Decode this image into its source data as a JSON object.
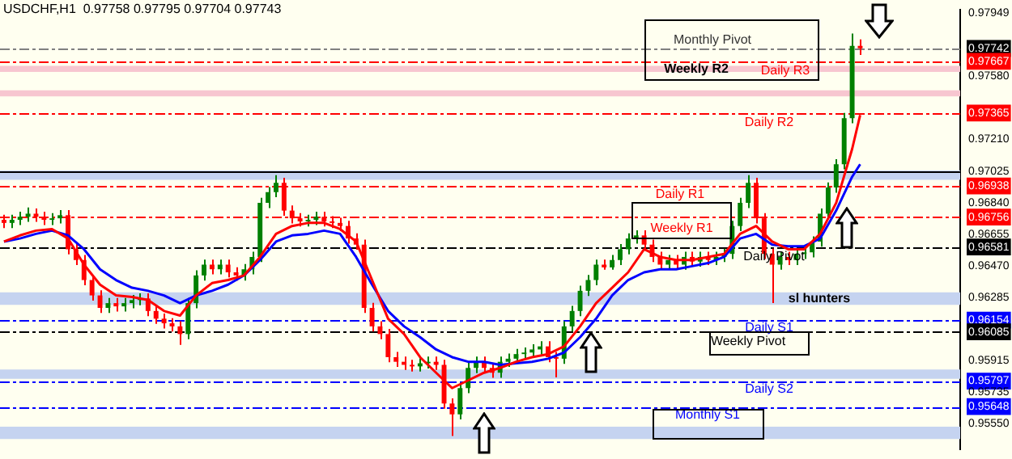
{
  "chart_data": {
    "type": "candlestick",
    "title": "USDCHF,H1  0.97758 0.97795 0.97704 0.97743",
    "categories": [
      null,
      null,
      null,
      null,
      null,
      null,
      null,
      null,
      null,
      null,
      null,
      null,
      null,
      null,
      null,
      null,
      null,
      null,
      null,
      null,
      null,
      null,
      null,
      null,
      null,
      null,
      null,
      null,
      null,
      null,
      null,
      null,
      null,
      null,
      null,
      null,
      null,
      null,
      null,
      null,
      null,
      null,
      null,
      null,
      null,
      null,
      null,
      null,
      null,
      null,
      null,
      null,
      null,
      null,
      null,
      null,
      null,
      null,
      null,
      null,
      null,
      null,
      null,
      null,
      null,
      null,
      null,
      null,
      null,
      null,
      null,
      null,
      null,
      null,
      null,
      null,
      null,
      null,
      null,
      null,
      null,
      null,
      null,
      null,
      null,
      null,
      null,
      null,
      null,
      null,
      null,
      null,
      null,
      null,
      null,
      null,
      null,
      null,
      null,
      null,
      null,
      null,
      null,
      null,
      null,
      null,
      null,
      null,
      null,
      null,
      null,
      null,
      null,
      null,
      null,
      null,
      null,
      null,
      null,
      null
    ],
    "ohlc": [
      [
        0.9674,
        0.9677,
        0.96692,
        0.96722
      ],
      [
        0.96722,
        0.9677,
        0.96692,
        0.9674
      ],
      [
        0.9674,
        0.96788,
        0.9671,
        0.96758
      ],
      [
        0.96758,
        0.96812,
        0.96728,
        0.96776
      ],
      [
        0.96776,
        0.96806,
        0.96728,
        0.96758
      ],
      [
        0.96758,
        0.96788,
        0.9671,
        0.9674
      ],
      [
        0.9674,
        0.96779,
        0.9671,
        0.96749
      ],
      [
        0.96749,
        0.96797,
        0.96719,
        0.96767
      ],
      [
        0.96767,
        0.96797,
        0.96538,
        0.96568
      ],
      [
        0.96568,
        0.96598,
        0.96475,
        0.96505
      ],
      [
        0.96505,
        0.96535,
        0.96358,
        0.96388
      ],
      [
        0.96388,
        0.96418,
        0.96268,
        0.96298
      ],
      [
        0.96298,
        0.96328,
        0.96195,
        0.96225
      ],
      [
        0.96225,
        0.96283,
        0.96195,
        0.96253
      ],
      [
        0.96253,
        0.96283,
        0.96204,
        0.96234
      ],
      [
        0.96234,
        0.96283,
        0.96204,
        0.96253
      ],
      [
        0.96253,
        0.96301,
        0.96223,
        0.96271
      ],
      [
        0.96271,
        0.9631,
        0.96241,
        0.9628
      ],
      [
        0.9628,
        0.9631,
        0.96177,
        0.96207
      ],
      [
        0.96207,
        0.96237,
        0.96132,
        0.96162
      ],
      [
        0.96162,
        0.96192,
        0.96105,
        0.96135
      ],
      [
        0.96135,
        0.96165,
        0.96087,
        0.96117
      ],
      [
        0.96117,
        0.96147,
        0.96009,
        0.96072
      ],
      [
        0.96072,
        0.96283,
        0.96042,
        0.96253
      ],
      [
        0.96253,
        0.96445,
        0.96223,
        0.96415
      ],
      [
        0.96415,
        0.96508,
        0.96385,
        0.96478
      ],
      [
        0.96478,
        0.96508,
        0.96421,
        0.96451
      ],
      [
        0.96451,
        0.96508,
        0.96421,
        0.96478
      ],
      [
        0.96478,
        0.96508,
        0.96403,
        0.96433
      ],
      [
        0.96433,
        0.96463,
        0.96385,
        0.96415
      ],
      [
        0.96415,
        0.96481,
        0.96385,
        0.96451
      ],
      [
        0.96451,
        0.96553,
        0.96421,
        0.96523
      ],
      [
        0.96523,
        0.96869,
        0.96493,
        0.96839
      ],
      [
        0.96839,
        0.96932,
        0.96809,
        0.96902
      ],
      [
        0.96902,
        0.97001,
        0.96872,
        0.96956
      ],
      [
        0.96956,
        0.96986,
        0.96764,
        0.96794
      ],
      [
        0.96794,
        0.96824,
        0.96719,
        0.96749
      ],
      [
        0.96749,
        0.96779,
        0.96701,
        0.96731
      ],
      [
        0.96731,
        0.9677,
        0.96701,
        0.9674
      ],
      [
        0.9674,
        0.96788,
        0.9671,
        0.96758
      ],
      [
        0.96758,
        0.96788,
        0.96701,
        0.96731
      ],
      [
        0.96731,
        0.96761,
        0.96692,
        0.96722
      ],
      [
        0.96722,
        0.96752,
        0.96674,
        0.96704
      ],
      [
        0.96704,
        0.96734,
        0.96601,
        0.96631
      ],
      [
        0.96631,
        0.96661,
        0.96565,
        0.96595
      ],
      [
        0.96595,
        0.96625,
        0.96195,
        0.96225
      ],
      [
        0.96225,
        0.96255,
        0.96087,
        0.96117
      ],
      [
        0.96117,
        0.96147,
        0.96042,
        0.96072
      ],
      [
        0.96072,
        0.96102,
        0.95907,
        0.95937
      ],
      [
        0.95937,
        0.95967,
        0.9588,
        0.9591
      ],
      [
        0.9591,
        0.9594,
        0.95862,
        0.95892
      ],
      [
        0.95892,
        0.95922,
        0.95853,
        0.95883
      ],
      [
        0.95883,
        0.95931,
        0.95853,
        0.95901
      ],
      [
        0.95901,
        0.9594,
        0.95871,
        0.9591
      ],
      [
        0.9591,
        0.9594,
        0.95862,
        0.95892
      ],
      [
        0.95892,
        0.95922,
        0.95636,
        0.95666
      ],
      [
        0.95666,
        0.95696,
        0.95476,
        0.95603
      ],
      [
        0.95603,
        0.95786,
        0.95573,
        0.95756
      ],
      [
        0.95756,
        0.95904,
        0.95726,
        0.95874
      ],
      [
        0.95874,
        0.9594,
        0.95844,
        0.9591
      ],
      [
        0.9591,
        0.9594,
        0.95844,
        0.95874
      ],
      [
        0.95874,
        0.95904,
        0.95816,
        0.95846
      ],
      [
        0.95846,
        0.9594,
        0.95816,
        0.9591
      ],
      [
        0.9591,
        0.95958,
        0.9588,
        0.95928
      ],
      [
        0.95928,
        0.95985,
        0.95898,
        0.95955
      ],
      [
        0.95955,
        0.95994,
        0.95925,
        0.95964
      ],
      [
        0.95964,
        0.96012,
        0.95934,
        0.95982
      ],
      [
        0.95982,
        0.9603,
        0.95952,
        0.96
      ],
      [
        0.96,
        0.9603,
        0.95907,
        0.95937
      ],
      [
        0.95937,
        0.95967,
        0.95819,
        0.95928
      ],
      [
        0.95928,
        0.96147,
        0.95898,
        0.96117
      ],
      [
        0.96117,
        0.96237,
        0.96087,
        0.96207
      ],
      [
        0.96207,
        0.96355,
        0.96177,
        0.96325
      ],
      [
        0.96325,
        0.96418,
        0.96295,
        0.96388
      ],
      [
        0.96388,
        0.96508,
        0.96358,
        0.96478
      ],
      [
        0.96478,
        0.96508,
        0.96448,
        0.96462
      ],
      [
        0.96462,
        0.96535,
        0.96448,
        0.96505
      ],
      [
        0.96505,
        0.96598,
        0.96475,
        0.96568
      ],
      [
        0.96568,
        0.96661,
        0.96538,
        0.96631
      ],
      [
        0.96631,
        0.96679,
        0.96601,
        0.96649
      ],
      [
        0.96649,
        0.96679,
        0.96565,
        0.96595
      ],
      [
        0.96595,
        0.96625,
        0.96493,
        0.96523
      ],
      [
        0.96523,
        0.96553,
        0.96448,
        0.96478
      ],
      [
        0.96478,
        0.96535,
        0.96448,
        0.96505
      ],
      [
        0.96505,
        0.96535,
        0.96448,
        0.96478
      ],
      [
        0.96478,
        0.96553,
        0.96448,
        0.96523
      ],
      [
        0.96523,
        0.96553,
        0.96466,
        0.96496
      ],
      [
        0.96496,
        0.96553,
        0.96466,
        0.96523
      ],
      [
        0.96523,
        0.96553,
        0.96475,
        0.96505
      ],
      [
        0.96505,
        0.96553,
        0.96475,
        0.96523
      ],
      [
        0.96523,
        0.96571,
        0.96493,
        0.96541
      ],
      [
        0.96541,
        0.96734,
        0.96511,
        0.96704
      ],
      [
        0.96704,
        0.96869,
        0.96674,
        0.96839
      ],
      [
        0.96839,
        0.97001,
        0.96809,
        0.96956
      ],
      [
        0.96956,
        0.96986,
        0.96719,
        0.96749
      ],
      [
        0.96749,
        0.96779,
        0.96511,
        0.96541
      ],
      [
        0.96541,
        0.96571,
        0.96253,
        0.96478
      ],
      [
        0.96478,
        0.96553,
        0.96448,
        0.96523
      ],
      [
        0.96523,
        0.96553,
        0.96475,
        0.96505
      ],
      [
        0.96505,
        0.96571,
        0.96475,
        0.96541
      ],
      [
        0.96541,
        0.9658,
        0.96511,
        0.9655
      ],
      [
        0.9655,
        0.96643,
        0.9652,
        0.96613
      ],
      [
        0.96613,
        0.96806,
        0.96583,
        0.96776
      ],
      [
        0.96776,
        0.96959,
        0.96746,
        0.96929
      ],
      [
        0.96929,
        0.97095,
        0.96899,
        0.97065
      ],
      [
        0.97065,
        0.97365,
        0.97035,
        0.97335
      ],
      [
        0.97335,
        0.9783,
        0.97305,
        0.97758
      ],
      [
        0.97758,
        0.97795,
        0.97704,
        0.97743
      ],
      null,
      null,
      null,
      null,
      null,
      null,
      null,
      null,
      null,
      null,
      null,
      null
    ],
    "colors": [
      "#ff0000",
      "#008000",
      "#008000",
      "#008000",
      "#ff0000",
      "#ff0000",
      "#008000",
      "#008000",
      "#ff0000",
      "#ff0000",
      "#ff0000",
      "#ff0000",
      "#ff0000",
      "#008000",
      "#ff0000",
      "#008000",
      "#008000",
      "#008000",
      "#ff0000",
      "#ff0000",
      "#ff0000",
      "#ff0000",
      "#ff0000",
      "#008000",
      "#008000",
      "#008000",
      "#ff0000",
      "#008000",
      "#ff0000",
      "#ff0000",
      "#008000",
      "#008000",
      "#008000",
      "#008000",
      "#008000",
      "#ff0000",
      "#ff0000",
      "#ff0000",
      "#008000",
      "#008000",
      "#ff0000",
      "#ff0000",
      "#ff0000",
      "#ff0000",
      "#ff0000",
      "#ff0000",
      "#ff0000",
      "#ff0000",
      "#ff0000",
      "#ff0000",
      "#ff0000",
      "#ff0000",
      "#008000",
      "#008000",
      "#ff0000",
      "#ff0000",
      "#ff0000",
      "#008000",
      "#008000",
      "#008000",
      "#ff0000",
      "#ff0000",
      "#008000",
      "#008000",
      "#008000",
      "#008000",
      "#008000",
      "#008000",
      "#ff0000",
      "#ff0000",
      "#008000",
      "#008000",
      "#008000",
      "#008000",
      "#008000",
      "#ff0000",
      "#008000",
      "#008000",
      "#008000",
      "#008000",
      "#ff0000",
      "#ff0000",
      "#ff0000",
      "#008000",
      "#ff0000",
      "#008000",
      "#ff0000",
      "#008000",
      "#ff0000",
      "#008000",
      "#008000",
      "#008000",
      "#008000",
      "#008000",
      "#ff0000",
      "#ff0000",
      "#ff0000",
      "#008000",
      "#ff0000",
      "#008000",
      "#008000",
      "#008000",
      "#008000",
      "#008000",
      "#008000",
      "#008000",
      "#008000",
      "#ff0000",
      null,
      null,
      null,
      null,
      null,
      null,
      null,
      null,
      null,
      null,
      null,
      null
    ],
    "series": [
      {
        "type": "line",
        "color": "#ff0000",
        "values": [
          0.96613,
          null,
          0.96649,
          null,
          0.96677,
          null,
          0.96686,
          null,
          0.96631,
          null,
          0.96478,
          null,
          0.96361,
          null,
          0.96298,
          null,
          0.96289,
          null,
          0.96271,
          null,
          0.96207,
          null,
          0.9618,
          null,
          0.96298,
          null,
          0.9637,
          null,
          0.96388,
          null,
          0.96415,
          null,
          0.96523,
          null,
          0.96658,
          null,
          0.96704,
          null,
          0.96722,
          null,
          0.96722,
          null,
          0.96686,
          null,
          0.96613,
          null,
          0.96388,
          null,
          0.96162,
          null,
          0.96072,
          null,
          0.95937,
          null,
          0.95846,
          null,
          0.95756,
          null,
          0.95801,
          null,
          0.95846,
          null,
          0.95874,
          null,
          0.9591,
          null,
          0.95937,
          null,
          0.95955,
          null,
          0.96,
          null,
          0.96117,
          null,
          0.96253,
          null,
          0.96343,
          null,
          0.96433,
          null,
          0.96568,
          null,
          0.96523,
          null,
          0.96505,
          null,
          0.96505,
          null,
          0.96523,
          null,
          0.96541,
          null,
          0.96658,
          null,
          0.96704,
          null,
          0.96613,
          null,
          0.96568,
          null,
          0.96568,
          null,
          0.96658,
          null,
          0.96839,
          null,
          0.97155,
          0.97353,
          null,
          null,
          null,
          null,
          null,
          null,
          null,
          null,
          null,
          null,
          null,
          null
        ]
      },
      {
        "type": "line",
        "color": "#0000ff",
        "values": [
          0.96613,
          null,
          0.96631,
          null,
          0.96658,
          null,
          0.96677,
          null,
          0.96649,
          null,
          0.96568,
          null,
          0.96451,
          null,
          0.96388,
          null,
          0.96343,
          null,
          0.96325,
          null,
          0.96298,
          null,
          0.96253,
          null,
          0.96298,
          null,
          0.96325,
          null,
          0.96361,
          null,
          0.96415,
          null,
          0.96505,
          null,
          0.96613,
          null,
          0.96649,
          null,
          0.96658,
          null,
          0.96677,
          null,
          0.96658,
          null,
          0.96523,
          null,
          0.96361,
          null,
          0.96207,
          null,
          0.96117,
          null,
          0.96054,
          null,
          0.95982,
          null,
          0.95937,
          null,
          0.9591,
          null,
          0.9591,
          null,
          0.95892,
          null,
          0.95901,
          null,
          0.9591,
          null,
          0.95928,
          null,
          0.95964,
          null,
          0.96054,
          null,
          0.96162,
          null,
          0.96298,
          null,
          0.96388,
          null,
          0.96433,
          null,
          0.96451,
          null,
          0.96451,
          null,
          0.96469,
          null,
          0.96487,
          null,
          0.96523,
          null,
          0.96631,
          null,
          0.96658,
          null,
          0.96595,
          null,
          0.96586,
          null,
          0.96586,
          null,
          0.96631,
          null,
          0.96794,
          null,
          0.96992,
          0.97065,
          null,
          null,
          null,
          null,
          null,
          null,
          null,
          null,
          null,
          null,
          null,
          null
        ]
      }
    ],
    "ylim": [
      0.954,
      0.97967
    ],
    "yticks": [
      0.97949,
      0.97742,
      0.97667,
      {
        "value": 0.9758,
        "label": "0.97580"
      },
      0.97365,
      {
        "value": 0.9721,
        "label": "0.97210"
      },
      0.97025,
      0.96938,
      {
        "value": 0.9684,
        "label": "0.96840"
      },
      0.96756,
      0.96655,
      0.96581,
      {
        "value": 0.9647,
        "label": "0.96470"
      },
      0.96285,
      0.96154,
      0.96085,
      0.95915,
      0.95797,
      0.95735,
      0.95648,
      {
        "value": 0.9555,
        "label": "0.95550"
      }
    ],
    "tick_labels": "y",
    "ref_lines": [
      {
        "axis": "y",
        "value": 0.97742,
        "label": "Monthly Pivot",
        "color": "#808080",
        "line_style": "dashed"
      },
      {
        "axis": "y",
        "value": 0.97667,
        "label": "Daily R3",
        "color": "#ff0000",
        "line_style": "dashed"
      },
      {
        "axis": "y",
        "value": 0.97365,
        "label": "Daily R2",
        "color": "#ff0000",
        "line_style": "dashed"
      },
      {
        "axis": "y",
        "value": 0.96938,
        "label": "Daily R1",
        "color": "#ff0000",
        "line_style": "dashed"
      },
      {
        "axis": "y",
        "value": 0.96756,
        "label": "Weekly R1",
        "color": "#ff0000",
        "line_style": "dashed"
      },
      {
        "axis": "y",
        "value": 0.96581,
        "label": "Daily Pivot",
        "color": "#000000",
        "line_style": "dashed"
      },
      {
        "axis": "y",
        "value": 0.96154,
        "label": "Daily S1",
        "color": "#0000ff",
        "line_style": "dashed"
      },
      {
        "axis": "y",
        "value": 0.96085,
        "label": "Weekly Pivot",
        "color": "#000000",
        "line_style": "dashed"
      },
      {
        "axis": "y",
        "value": 0.95797,
        "label": "Daily S2",
        "color": "#0000ff",
        "line_style": "dashed"
      },
      {
        "axis": "y",
        "value": 0.95648,
        "label": "Monthly S1",
        "color": "#0000ff",
        "line_style": "dashed"
      },
      {
        "axis": "y",
        "value": 0.9702,
        "color": "#000000",
        "line_style": "solid"
      }
    ],
    "bands": [
      {
        "axis": "y",
        "from": 0.97605,
        "to": 0.9764,
        "label": "Weekly R2",
        "color": "#f7c6d0"
      },
      {
        "axis": "y",
        "from": 0.97462,
        "to": 0.97498,
        "color": "#f7c6d0"
      },
      {
        "axis": "y",
        "from": 0.96974,
        "to": 0.97029,
        "color": "#c5d3f0"
      },
      {
        "axis": "y",
        "from": 0.96243,
        "to": 0.96316,
        "label": "sl hunters",
        "color": "#c5d3f0"
      },
      {
        "axis": "y",
        "from": 0.9581,
        "to": 0.95865,
        "color": "#c5d3f0"
      },
      {
        "axis": "y",
        "from": 0.95458,
        "to": 0.95531,
        "color": "#c5d3f0"
      }
    ]
  }
}
